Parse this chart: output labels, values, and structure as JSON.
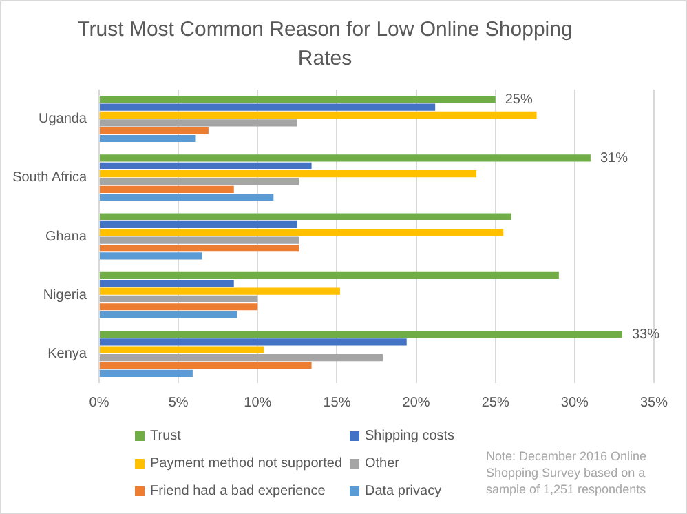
{
  "chart_data": {
    "type": "bar",
    "orientation": "horizontal",
    "title": "Trust Most Common Reason for Low Online Shopping Rates",
    "categories": [
      "Uganda",
      "South Africa",
      "Ghana",
      "Nigeria",
      "Kenya"
    ],
    "series": [
      {
        "name": "Trust",
        "color": "#70ad47",
        "values": [
          25,
          31,
          26,
          29,
          33
        ],
        "value_labels": [
          "25%",
          "31%",
          null,
          null,
          "33%"
        ]
      },
      {
        "name": "Shipping costs",
        "color": "#4472c4",
        "values": [
          21.2,
          13.4,
          12.5,
          8.5,
          19.4
        ]
      },
      {
        "name": "Payment method not supported",
        "color": "#ffc000",
        "values": [
          27.6,
          23.8,
          25.5,
          15.2,
          10.4
        ]
      },
      {
        "name": "Other",
        "color": "#a5a5a5",
        "values": [
          12.5,
          12.6,
          12.6,
          10,
          17.9
        ]
      },
      {
        "name": "Friend had a bad experience",
        "color": "#ed7d31",
        "values": [
          6.9,
          8.5,
          12.6,
          10,
          13.4
        ]
      },
      {
        "name": "Data privacy",
        "color": "#5b9bd5",
        "values": [
          6.1,
          11,
          6.5,
          8.7,
          5.9
        ]
      }
    ],
    "xlim": [
      0,
      35
    ],
    "xticks": [
      {
        "value": 0,
        "label": "0%"
      },
      {
        "value": 5,
        "label": "5%"
      },
      {
        "value": 10,
        "label": "10%"
      },
      {
        "value": 15,
        "label": "15%"
      },
      {
        "value": 20,
        "label": "20%"
      },
      {
        "value": 25,
        "label": "25%"
      },
      {
        "value": 30,
        "label": "30%"
      },
      {
        "value": 35,
        "label": "35%"
      }
    ],
    "grid": "x",
    "legend": "bottom",
    "annotations": [
      "Note: December 2016 Online Shopping Survey based on a sample of 1,251 respondents"
    ]
  }
}
